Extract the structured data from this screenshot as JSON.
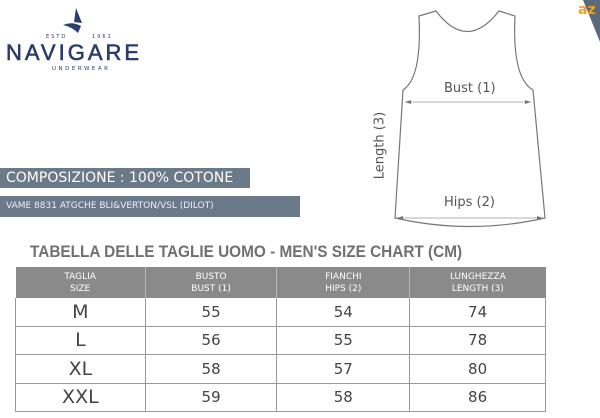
{
  "logo": {
    "brand": "NAVIGARE",
    "est_left": "ESTD",
    "est_right": "1961",
    "subtitle": "UNDERWEAR",
    "color": "#2b3d6b"
  },
  "composition": "COMPOSIZIONE : 100% COTONE",
  "care_text": "VAME 8831 ATGCHE BLI&VERTON/VSL (DILOT)",
  "banner_color": "#6b7a88",
  "diagram": {
    "bust": "Bust (1)",
    "hips": "Hips (2)",
    "length": "Length (3)"
  },
  "corner_badge": "az",
  "table": {
    "title": "TABELLA DELLE TAGLIE UOMO - MEN'S SIZE CHART (CM)",
    "headers": [
      [
        "TAGLIA",
        "SIZE"
      ],
      [
        "BUSTO",
        "BUST (1)"
      ],
      [
        "FIANCHI",
        "HIPS (2)"
      ],
      [
        "LUNGHEZZA",
        "LENGTH (3)"
      ]
    ],
    "rows": [
      [
        "M",
        "55",
        "54",
        "74"
      ],
      [
        "L",
        "56",
        "55",
        "78"
      ],
      [
        "XL",
        "58",
        "57",
        "80"
      ],
      [
        "XXL",
        "59",
        "58",
        "86"
      ]
    ]
  }
}
